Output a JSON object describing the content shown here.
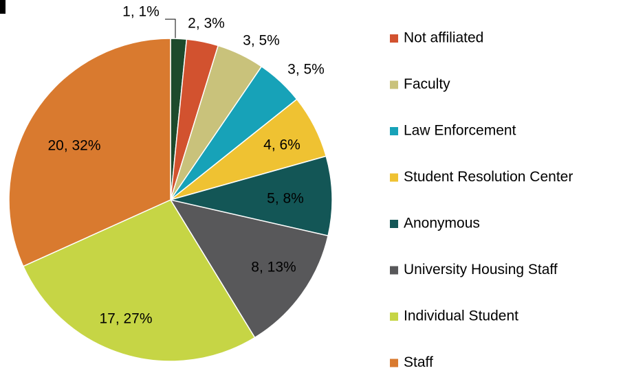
{
  "chart_data": {
    "type": "pie",
    "categories": [
      null,
      "Not affiliated",
      "Faculty",
      "Law Enforcement",
      "Student Resolution Center",
      "Anonymous",
      "University Housing Staff",
      "Individual Student",
      "Staff"
    ],
    "values": [
      1,
      2,
      3,
      3,
      4,
      5,
      8,
      17,
      20
    ],
    "value_labels": [
      "1, 1%",
      "2, 3%",
      "3, 5%",
      "3, 5%",
      "4, 6%",
      "5, 8%",
      "8, 13%",
      "17, 27%",
      "20, 32%"
    ],
    "colors": [
      "#1d4a2c",
      "#d2522f",
      "#c9c27b",
      "#17a2b8",
      "#efc232",
      "#135656",
      "#58585a",
      "#c6d545",
      "#d97a2f"
    ]
  }
}
